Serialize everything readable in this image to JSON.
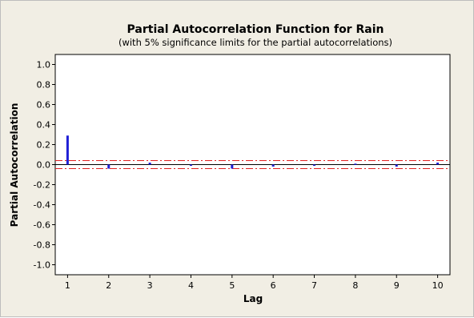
{
  "chart_data": {
    "type": "bar",
    "title": "Partial Autocorrelation Function for Rain",
    "subtitle": "(with 5% significance limits for the partial autocorrelations)",
    "xlabel": "Lag",
    "ylabel": "Partial Autocorrelation",
    "x": [
      1,
      2,
      3,
      4,
      5,
      6,
      7,
      8,
      9,
      10
    ],
    "values": [
      0.29,
      -0.04,
      0.02,
      0.0,
      -0.04,
      -0.02,
      -0.01,
      0.01,
      -0.02,
      0.02
    ],
    "significance_limits": [
      0.04,
      -0.04
    ],
    "ylim": [
      -1.1,
      1.1
    ],
    "xlim": [
      0.7,
      10.3
    ],
    "yticks": [
      "1.0",
      "0.8",
      "0.6",
      "0.4",
      "0.2",
      "0.0",
      "-0.2",
      "-0.4",
      "-0.6",
      "-0.8",
      "-1.0"
    ],
    "xticks": [
      "1",
      "2",
      "3",
      "4",
      "5",
      "6",
      "7",
      "8",
      "9",
      "10"
    ],
    "grid": false,
    "colors": {
      "bars": "#1f1fd6",
      "limits": "#e02020",
      "background": "#f1eee4",
      "plot_area": "#ffffff"
    }
  }
}
